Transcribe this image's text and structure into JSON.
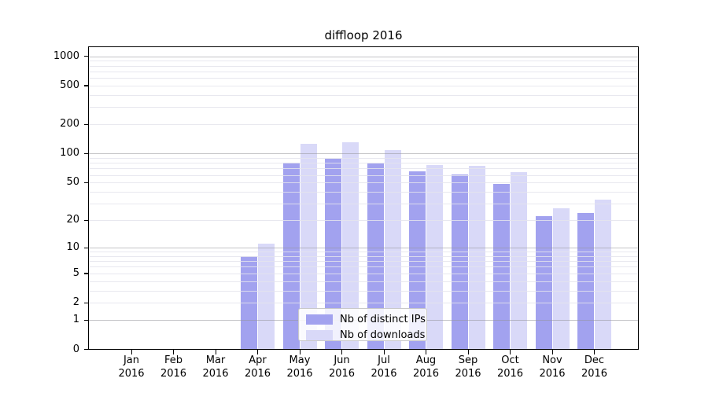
{
  "chart_data": {
    "type": "bar",
    "title": "diffloop 2016",
    "categories": [
      "Jan 2016",
      "Feb 2016",
      "Mar 2016",
      "Apr 2016",
      "May 2016",
      "Jun 2016",
      "Jul 2016",
      "Aug 2016",
      "Sep 2016",
      "Oct 2016",
      "Nov 2016",
      "Dec 2016"
    ],
    "x_months": [
      "Jan",
      "Feb",
      "Mar",
      "Apr",
      "May",
      "Jun",
      "Jul",
      "Aug",
      "Sep",
      "Oct",
      "Nov",
      "Dec"
    ],
    "x_year": "2016",
    "series": [
      {
        "name": "Nb of distinct IPs",
        "color": "#a2a2ef",
        "values": [
          0,
          0,
          0,
          8,
          81,
          89,
          79,
          66,
          61,
          48,
          22,
          24
        ]
      },
      {
        "name": "Nb of downloads",
        "color": "#d9d9f8",
        "values": [
          0,
          0,
          0,
          11,
          127,
          131,
          109,
          76,
          75,
          64,
          27,
          33
        ]
      }
    ],
    "y_ticks": [
      0,
      1,
      2,
      5,
      10,
      20,
      50,
      100,
      200,
      500,
      1000
    ],
    "y_scale": "log1p",
    "ylim": [
      0,
      1250
    ],
    "grid": true,
    "legend_position": "lower-center"
  }
}
